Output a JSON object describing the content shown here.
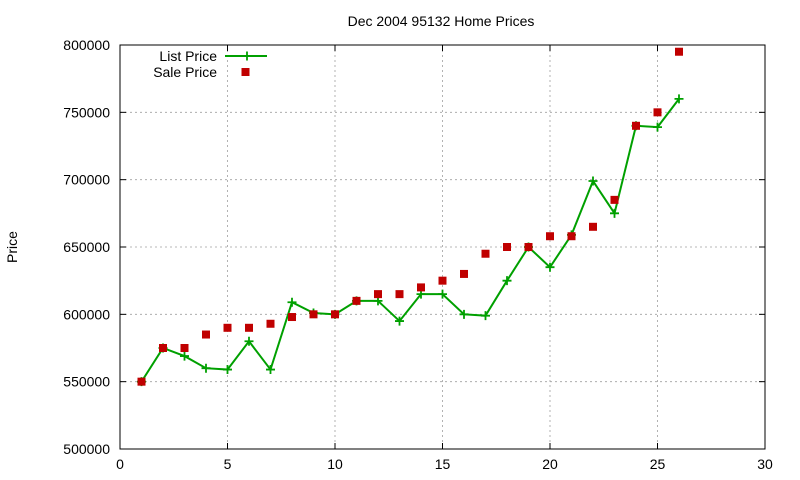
{
  "chart_data": {
    "type": "scatter",
    "title": "Dec 2004 95132 Home Prices",
    "xlabel": "",
    "ylabel": "Price",
    "xlim": [
      0,
      30
    ],
    "ylim": [
      500000,
      800000
    ],
    "xticks": [
      0,
      5,
      10,
      15,
      20,
      25,
      30
    ],
    "yticks": [
      500000,
      550000,
      600000,
      650000,
      700000,
      750000,
      800000
    ],
    "grid": true,
    "legend_position": "top-left",
    "series": [
      {
        "name": "List Price",
        "style": "lines+points",
        "marker": "plus",
        "color": "#00a000",
        "x": [
          1,
          2,
          3,
          4,
          5,
          6,
          7,
          8,
          9,
          10,
          11,
          12,
          13,
          14,
          15,
          16,
          17,
          18,
          19,
          20,
          21,
          22,
          23,
          24,
          25,
          26
        ],
        "y": [
          550000,
          575000,
          569000,
          560000,
          559000,
          580000,
          559000,
          609000,
          601000,
          600000,
          610000,
          610000,
          595000,
          615000,
          615000,
          600000,
          599000,
          625000,
          650000,
          635000,
          659000,
          699000,
          675000,
          740000,
          739000,
          760000
        ]
      },
      {
        "name": "Sale Price",
        "style": "points",
        "marker": "square",
        "color": "#c00000",
        "x": [
          1,
          2,
          3,
          4,
          5,
          6,
          7,
          8,
          9,
          10,
          11,
          12,
          13,
          14,
          15,
          16,
          17,
          18,
          19,
          20,
          21,
          22,
          23,
          24,
          25,
          26
        ],
        "y": [
          550000,
          575000,
          575000,
          585000,
          590000,
          590000,
          593000,
          598000,
          600000,
          600000,
          610000,
          615000,
          615000,
          620000,
          625000,
          630000,
          645000,
          650000,
          650000,
          658000,
          658000,
          665000,
          685000,
          740000,
          750000,
          795000
        ]
      }
    ]
  }
}
